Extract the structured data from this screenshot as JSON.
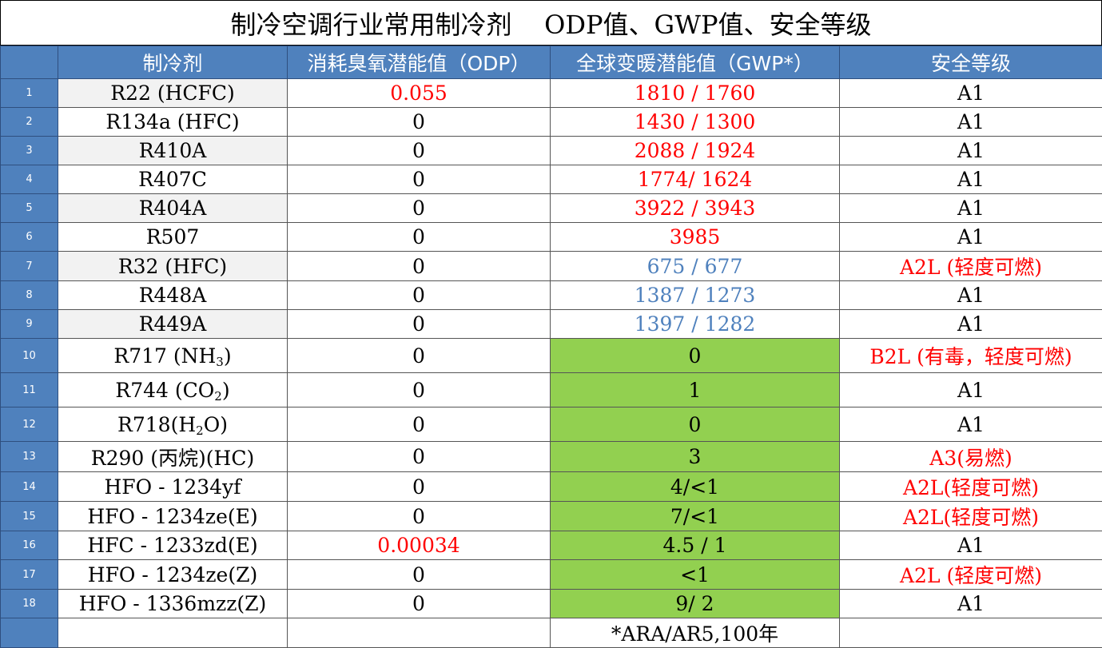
{
  "title": "制冷空调行业常用制冷剂    ODP值、GWP值、安全等级",
  "headers": {
    "refrigerant": "制冷剂",
    "odp": "消耗臭氧潜能值（ODP）",
    "gwp": "全球变暖潜能值（GWP*）",
    "safety": "安全等级"
  },
  "colors": {
    "header_bg": "#4f81bd",
    "green_cell": "#92d050",
    "red_text": "#ff0000",
    "blue_text": "#4f81bd"
  },
  "rows": [
    {
      "idx": "1",
      "name": "R22 (HCFC)",
      "odp": "0.055",
      "gwp": "1810 / 1760",
      "safety": "A1"
    },
    {
      "idx": "2",
      "name": "R134a (HFC)",
      "odp": "0",
      "gwp": "1430 / 1300",
      "safety": "A1"
    },
    {
      "idx": "3",
      "name": "R410A",
      "odp": "0",
      "gwp": "2088 / 1924",
      "safety": "A1"
    },
    {
      "idx": "4",
      "name": "R407C",
      "odp": "0",
      "gwp": "1774/ 1624",
      "safety": "A1"
    },
    {
      "idx": "5",
      "name": "R404A",
      "odp": "0",
      "gwp": "3922 / 3943",
      "safety": "A1"
    },
    {
      "idx": "6",
      "name": "R507",
      "odp": "0",
      "gwp": "3985",
      "safety": "A1"
    },
    {
      "idx": "7",
      "name": "R32 (HFC)",
      "odp": "0",
      "gwp": "675 / 677",
      "safety": "A2L (轻度可燃)"
    },
    {
      "idx": "8",
      "name": "R448A",
      "odp": "0",
      "gwp": "1387 / 1273",
      "safety": "A1"
    },
    {
      "idx": "9",
      "name": "R449A",
      "odp": "0",
      "gwp": "1397 / 1282",
      "safety": "A1"
    },
    {
      "idx": "10",
      "name_prefix": "R717 (NH",
      "name_sub": "3",
      "name_suffix": ")",
      "odp": "0",
      "gwp": "0",
      "safety": "B2L (有毒，轻度可燃)"
    },
    {
      "idx": "11",
      "name_prefix": "R744 (CO",
      "name_sub": "2",
      "name_suffix": ")",
      "odp": "0",
      "gwp": "1",
      "safety": "A1"
    },
    {
      "idx": "12",
      "name_prefix": "R718(H",
      "name_sub": "2",
      "name_suffix": "O)",
      "odp": "0",
      "gwp": "0",
      "safety": "A1"
    },
    {
      "idx": "13",
      "name": "R290 (丙烷)(HC)",
      "odp": "0",
      "gwp": "3",
      "safety": "A3(易燃)"
    },
    {
      "idx": "14",
      "name": "HFO - 1234yf",
      "odp": "0",
      "gwp": "4/<1",
      "safety": "A2L(轻度可燃)"
    },
    {
      "idx": "15",
      "name": "HFO - 1234ze(E)",
      "odp": "0",
      "gwp": "7/<1",
      "safety": "A2L(轻度可燃)"
    },
    {
      "idx": "16",
      "name": "HFC - 1233zd(E)",
      "odp": "0.00034",
      "gwp": "4.5 / 1",
      "safety": "A1"
    },
    {
      "idx": "17",
      "name": "HFO - 1234ze(Z)",
      "odp": "0",
      "gwp": "<1",
      "safety": "A2L (轻度可燃)"
    },
    {
      "idx": "18",
      "name": "HFO - 1336mzz(Z)",
      "odp": "0",
      "gwp": "9/ 2",
      "safety": "A1"
    }
  ],
  "footnote": "*ARA/AR5,100年"
}
